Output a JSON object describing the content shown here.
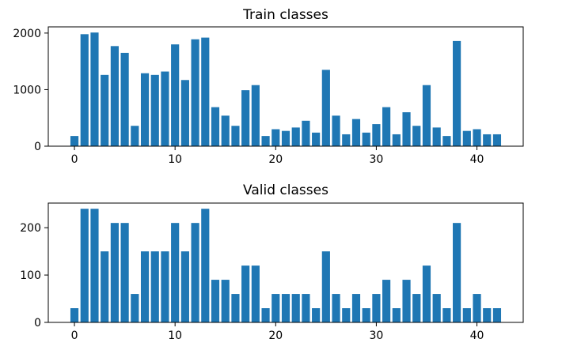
{
  "chart_data": [
    {
      "type": "bar",
      "title": "Train classes",
      "xlabel": "",
      "ylabel": "",
      "x": [
        0,
        1,
        2,
        3,
        4,
        5,
        6,
        7,
        8,
        9,
        10,
        11,
        12,
        13,
        14,
        15,
        16,
        17,
        18,
        19,
        20,
        21,
        22,
        23,
        24,
        25,
        26,
        27,
        28,
        29,
        30,
        31,
        32,
        33,
        34,
        35,
        36,
        37,
        38,
        39,
        40,
        41,
        42
      ],
      "values": [
        180,
        1980,
        2010,
        1260,
        1770,
        1650,
        360,
        1290,
        1260,
        1320,
        1800,
        1170,
        1890,
        1920,
        690,
        540,
        360,
        990,
        1080,
        180,
        300,
        270,
        330,
        450,
        240,
        1350,
        540,
        210,
        480,
        240,
        390,
        690,
        210,
        600,
        360,
        1080,
        330,
        180,
        1860,
        270,
        300,
        210,
        210
      ],
      "xlim": [
        -2.6,
        44.6
      ],
      "ylim": [
        0,
        2110
      ],
      "xticks": [
        0,
        10,
        20,
        30,
        40
      ],
      "yticks": [
        0,
        1000,
        2000
      ],
      "color": "#1f77b4",
      "grid": false
    },
    {
      "type": "bar",
      "title": "Valid classes",
      "xlabel": "",
      "ylabel": "",
      "x": [
        0,
        1,
        2,
        3,
        4,
        5,
        6,
        7,
        8,
        9,
        10,
        11,
        12,
        13,
        14,
        15,
        16,
        17,
        18,
        19,
        20,
        21,
        22,
        23,
        24,
        25,
        26,
        27,
        28,
        29,
        30,
        31,
        32,
        33,
        34,
        35,
        36,
        37,
        38,
        39,
        40,
        41,
        42
      ],
      "values": [
        30,
        240,
        240,
        150,
        210,
        210,
        60,
        150,
        150,
        150,
        210,
        150,
        210,
        240,
        90,
        90,
        60,
        120,
        120,
        30,
        60,
        60,
        60,
        60,
        30,
        150,
        60,
        30,
        60,
        30,
        60,
        90,
        30,
        90,
        60,
        120,
        60,
        30,
        210,
        30,
        60,
        30,
        30
      ],
      "xlim": [
        -2.6,
        44.6
      ],
      "ylim": [
        0,
        252
      ],
      "xticks": [
        0,
        10,
        20,
        30,
        40
      ],
      "yticks": [
        0,
        100,
        200
      ],
      "color": "#1f77b4",
      "grid": false
    }
  ]
}
